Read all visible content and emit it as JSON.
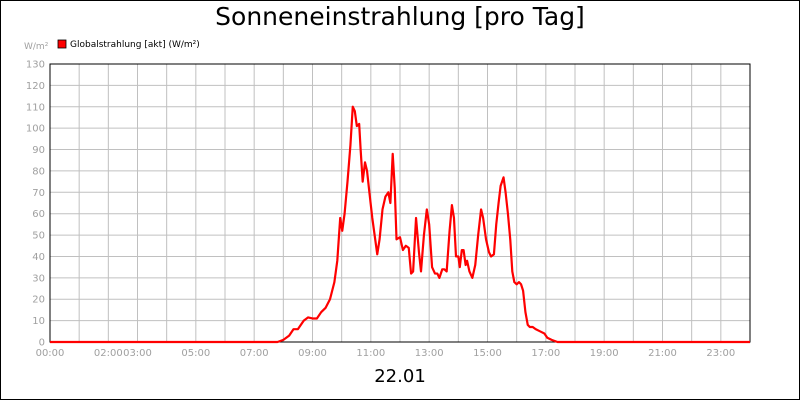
{
  "chart_data": {
    "type": "line",
    "title": "Sonneneinstrahlung [pro Tag]",
    "ylabel": "W/m²",
    "xlabel": "22.01",
    "ylim": [
      0,
      130
    ],
    "xlim": [
      0,
      24
    ],
    "y_ticks": [
      0,
      10,
      20,
      30,
      40,
      50,
      60,
      70,
      80,
      90,
      100,
      110,
      120,
      130
    ],
    "x_ticks": [
      {
        "h": 0,
        "label": "00:00"
      },
      {
        "h": 2,
        "label": "02:00"
      },
      {
        "h": 3,
        "label": "03:00"
      },
      {
        "h": 5,
        "label": "05:00"
      },
      {
        "h": 7,
        "label": "07:00"
      },
      {
        "h": 9,
        "label": "09:00"
      },
      {
        "h": 11,
        "label": "11:00"
      },
      {
        "h": 13,
        "label": "13:00"
      },
      {
        "h": 15,
        "label": "15:00"
      },
      {
        "h": 17,
        "label": "17:00"
      },
      {
        "h": 19,
        "label": "19:00"
      },
      {
        "h": 21,
        "label": "21:00"
      },
      {
        "h": 23,
        "label": "23:00"
      }
    ],
    "grid": true,
    "legend_position": "top-left",
    "series": [
      {
        "name": "Globalstrahlung [akt] (W/m²)",
        "color": "#ff0000",
        "points": [
          [
            0,
            0
          ],
          [
            7.8,
            0
          ],
          [
            8.0,
            1
          ],
          [
            8.2,
            3
          ],
          [
            8.35,
            6
          ],
          [
            8.5,
            6
          ],
          [
            8.7,
            10
          ],
          [
            8.85,
            11.5
          ],
          [
            9.0,
            11
          ],
          [
            9.15,
            11
          ],
          [
            9.3,
            14
          ],
          [
            9.45,
            16
          ],
          [
            9.6,
            20
          ],
          [
            9.75,
            28
          ],
          [
            9.85,
            38
          ],
          [
            9.95,
            58
          ],
          [
            10.02,
            52
          ],
          [
            10.1,
            60
          ],
          [
            10.2,
            75
          ],
          [
            10.3,
            92
          ],
          [
            10.38,
            110
          ],
          [
            10.45,
            108
          ],
          [
            10.52,
            101
          ],
          [
            10.6,
            102
          ],
          [
            10.65,
            90
          ],
          [
            10.72,
            75
          ],
          [
            10.8,
            84
          ],
          [
            10.87,
            80
          ],
          [
            10.95,
            70
          ],
          [
            11.05,
            58
          ],
          [
            11.15,
            48
          ],
          [
            11.22,
            41
          ],
          [
            11.3,
            48
          ],
          [
            11.4,
            62
          ],
          [
            11.5,
            68
          ],
          [
            11.6,
            70
          ],
          [
            11.67,
            65
          ],
          [
            11.75,
            88
          ],
          [
            11.82,
            72
          ],
          [
            11.88,
            48
          ],
          [
            12.0,
            49
          ],
          [
            12.1,
            43
          ],
          [
            12.2,
            45
          ],
          [
            12.3,
            44
          ],
          [
            12.38,
            32
          ],
          [
            12.45,
            33
          ],
          [
            12.55,
            58
          ],
          [
            12.65,
            42
          ],
          [
            12.72,
            33
          ],
          [
            12.82,
            50
          ],
          [
            12.92,
            62
          ],
          [
            13.0,
            55
          ],
          [
            13.1,
            35
          ],
          [
            13.2,
            32
          ],
          [
            13.28,
            32
          ],
          [
            13.35,
            30
          ],
          [
            13.45,
            34
          ],
          [
            13.52,
            34
          ],
          [
            13.6,
            33
          ],
          [
            13.7,
            52
          ],
          [
            13.78,
            64
          ],
          [
            13.85,
            58
          ],
          [
            13.92,
            40
          ],
          [
            14.0,
            40
          ],
          [
            14.05,
            35
          ],
          [
            14.12,
            43
          ],
          [
            14.18,
            43
          ],
          [
            14.25,
            36
          ],
          [
            14.3,
            38
          ],
          [
            14.38,
            33
          ],
          [
            14.48,
            30
          ],
          [
            14.58,
            36
          ],
          [
            14.68,
            50
          ],
          [
            14.78,
            62
          ],
          [
            14.85,
            58
          ],
          [
            14.95,
            48
          ],
          [
            15.05,
            42
          ],
          [
            15.12,
            40
          ],
          [
            15.22,
            41
          ],
          [
            15.3,
            55
          ],
          [
            15.38,
            65
          ],
          [
            15.45,
            73
          ],
          [
            15.55,
            77
          ],
          [
            15.62,
            70
          ],
          [
            15.7,
            60
          ],
          [
            15.78,
            48
          ],
          [
            15.85,
            33
          ],
          [
            15.92,
            28
          ],
          [
            16.0,
            27
          ],
          [
            16.08,
            28
          ],
          [
            16.15,
            27
          ],
          [
            16.22,
            24
          ],
          [
            16.3,
            14
          ],
          [
            16.38,
            8
          ],
          [
            16.45,
            7
          ],
          [
            16.55,
            7
          ],
          [
            16.65,
            6
          ],
          [
            16.8,
            5
          ],
          [
            16.95,
            4
          ],
          [
            17.05,
            2
          ],
          [
            17.2,
            1
          ],
          [
            17.4,
            0
          ],
          [
            24,
            0
          ]
        ]
      }
    ]
  }
}
